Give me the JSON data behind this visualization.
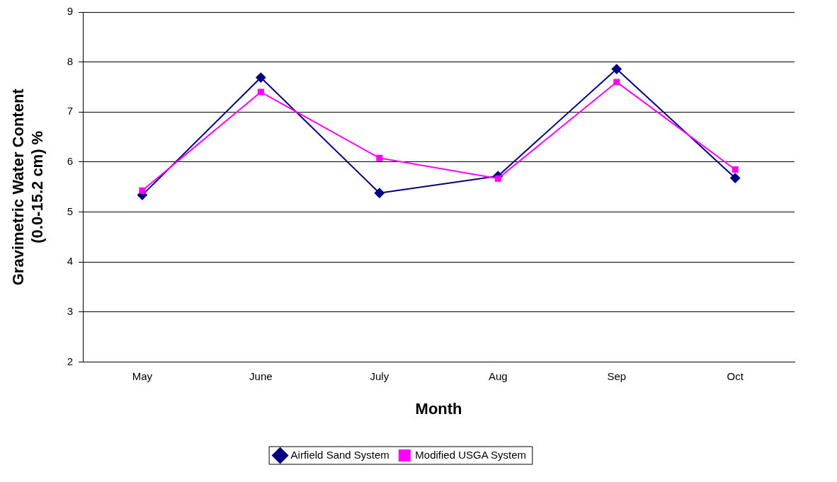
{
  "chart_data": {
    "type": "line",
    "xlabel": "Month",
    "ylabel": "Gravimetric Water Content\n(0.0-15.2 cm) %",
    "categories": [
      "May",
      "June",
      "July",
      "Aug",
      "Sep",
      "Oct"
    ],
    "series": [
      {
        "name": "Airfield Sand System",
        "color": "#000080",
        "marker": "diamond",
        "values": [
          5.34,
          7.69,
          5.38,
          5.72,
          7.86,
          5.68
        ]
      },
      {
        "name": "Modified USGA System",
        "color": "#ff00ff",
        "marker": "square",
        "values": [
          5.43,
          7.4,
          6.08,
          5.67,
          7.6,
          5.85
        ]
      }
    ],
    "ylim": [
      2,
      9
    ],
    "yticks": [
      2,
      3,
      4,
      5,
      6,
      7,
      8,
      9
    ],
    "grid": "y",
    "legend": "bottom",
    "line_style": "solid"
  }
}
